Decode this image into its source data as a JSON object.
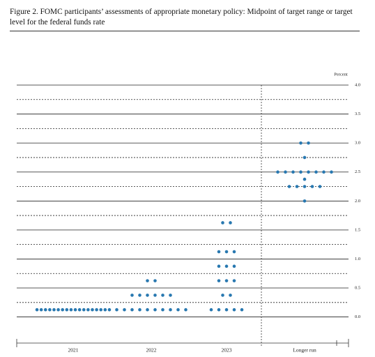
{
  "chart_data": {
    "type": "dot",
    "title": "Figure 2. FOMC participants’ assessments of appropriate monetary policy: Midpoint of target range or target level for the federal funds rate",
    "y_label": "Percent",
    "categories": [
      "2021",
      "2022",
      "2023",
      "Longer run"
    ],
    "values": [
      [
        0.125,
        0.125,
        0.125,
        0.125,
        0.125,
        0.125,
        0.125,
        0.125,
        0.125,
        0.125,
        0.125,
        0.125,
        0.125,
        0.125,
        0.125,
        0.125,
        0.125,
        0.125
      ],
      [
        0.125,
        0.125,
        0.125,
        0.125,
        0.125,
        0.125,
        0.125,
        0.125,
        0.125,
        0.125,
        0.375,
        0.375,
        0.375,
        0.375,
        0.375,
        0.375,
        0.625,
        0.625
      ],
      [
        0.125,
        0.125,
        0.125,
        0.125,
        0.125,
        0.375,
        0.375,
        0.625,
        0.625,
        0.625,
        0.875,
        0.875,
        0.875,
        1.125,
        1.125,
        1.125,
        1.625,
        1.625
      ],
      [
        2.0,
        2.25,
        2.25,
        2.25,
        2.25,
        2.25,
        2.375,
        2.5,
        2.5,
        2.5,
        2.5,
        2.5,
        2.5,
        2.5,
        2.5,
        2.75,
        3.0,
        3.0
      ]
    ],
    "color": "#2878b0",
    "ylim": [
      -0.45,
      4.0
    ],
    "yticks": [
      {
        "value": 0,
        "label": "0.0"
      },
      {
        "value": 0.5,
        "label": "0.5"
      },
      {
        "value": 1,
        "label": "1.0"
      },
      {
        "value": 1.5,
        "label": "1.5"
      },
      {
        "value": 2,
        "label": "2.0"
      },
      {
        "value": 2.5,
        "label": "2.5"
      },
      {
        "value": 3,
        "label": "3.0"
      },
      {
        "value": 3.5,
        "label": "3.5"
      },
      {
        "value": 4,
        "label": "4.0"
      }
    ],
    "yticks_minor": [
      0.25,
      0.75,
      1.25,
      1.75,
      2.25,
      2.75,
      3.25,
      3.75
    ],
    "grid": true
  }
}
